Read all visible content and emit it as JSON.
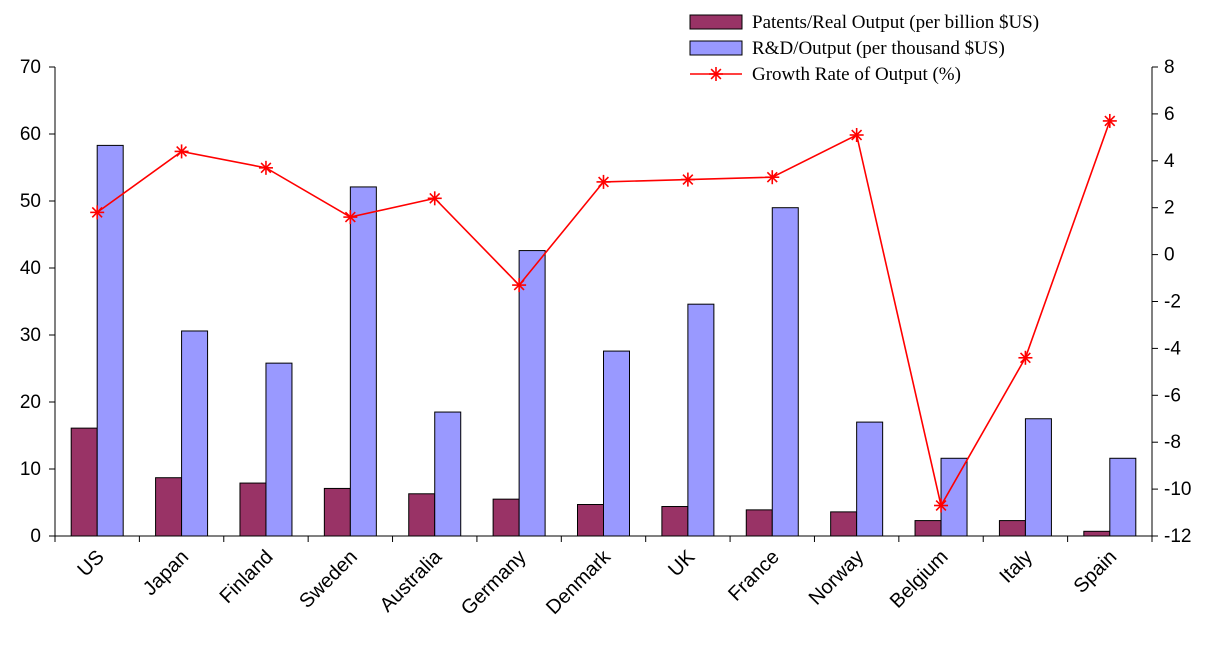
{
  "chart_data": {
    "type": "bar",
    "categories": [
      "US",
      "Japan",
      "Finland",
      "Sweden",
      "Australia",
      "Germany",
      "Denmark",
      "UK",
      "France",
      "Norway",
      "Belgium",
      "Italy",
      "Spain"
    ],
    "series": [
      {
        "name": "Patents/Real Output (per billion $US)",
        "kind": "bar",
        "axis": "left",
        "color": "#993366",
        "values": [
          16.1,
          8.7,
          7.9,
          7.1,
          6.3,
          5.5,
          4.7,
          4.4,
          3.9,
          3.6,
          2.3,
          2.3,
          0.7
        ]
      },
      {
        "name": "R&D/Output (per thousand $US)",
        "kind": "bar",
        "axis": "left",
        "color": "#9999FF",
        "values": [
          58.3,
          30.6,
          25.8,
          52.1,
          18.5,
          42.6,
          27.6,
          34.6,
          49.0,
          17.0,
          11.6,
          17.5,
          11.6
        ]
      },
      {
        "name": "Growth Rate of Output (%)",
        "kind": "line",
        "axis": "right",
        "color": "#FF0000",
        "marker": "asterisk",
        "values": [
          1.8,
          4.4,
          3.7,
          1.6,
          2.4,
          -1.3,
          3.1,
          3.2,
          3.3,
          5.1,
          -10.7,
          -4.4,
          5.7
        ]
      }
    ],
    "y_left": {
      "ylim": [
        0,
        70
      ],
      "ticks": [
        0,
        10,
        20,
        30,
        40,
        50,
        60,
        70
      ]
    },
    "y_right": {
      "ylim": [
        -12,
        8
      ],
      "ticks": [
        -12,
        -10,
        -8,
        -6,
        -4,
        -2,
        0,
        2,
        4,
        6,
        8
      ]
    },
    "title": "",
    "xlabel": "",
    "ylabel": "",
    "legend_position": "top-right",
    "grid": false
  }
}
